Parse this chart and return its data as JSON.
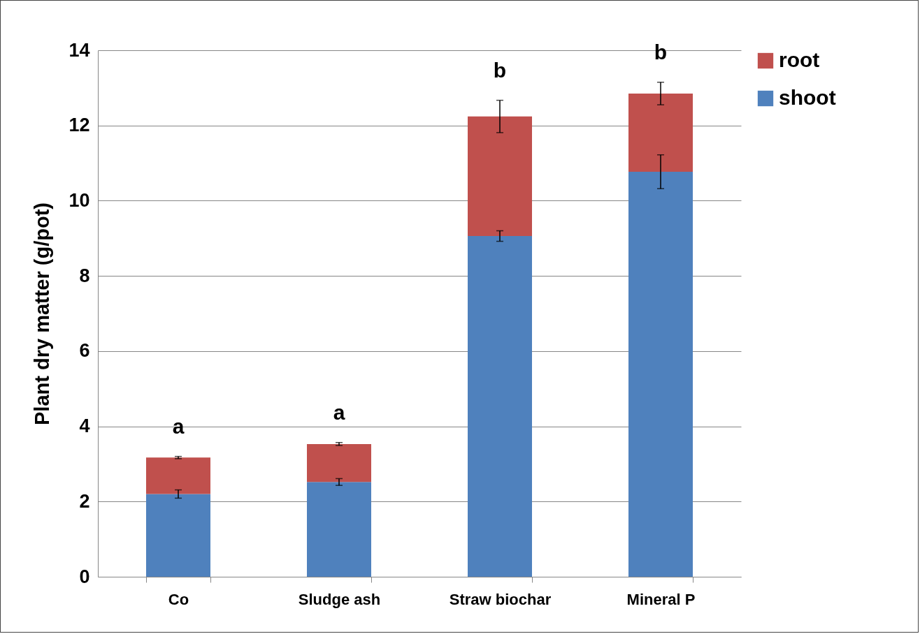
{
  "chart_data": {
    "type": "bar",
    "stacked": true,
    "ylabel": "Plant dry matter (g/pot)",
    "categories": [
      "Co",
      "Sludge ash",
      "Straw biochar",
      "Mineral P"
    ],
    "series": [
      {
        "name": "shoot",
        "color": "#4f81bd",
        "values": [
          2.2,
          2.52,
          9.06,
          10.77
        ],
        "errors": [
          0.11,
          0.09,
          0.14,
          0.45
        ]
      },
      {
        "name": "root",
        "color": "#c0504d",
        "values": [
          0.97,
          1.01,
          3.18,
          2.08
        ],
        "errors": [
          0.03,
          0.04,
          0.43,
          0.3
        ]
      }
    ],
    "ylim": [
      0,
      14
    ],
    "yticks": [
      0,
      2,
      4,
      6,
      8,
      10,
      12,
      14
    ],
    "grid": "y",
    "legend": "right",
    "annotations": [
      "a",
      "a",
      "b",
      "b"
    ]
  }
}
